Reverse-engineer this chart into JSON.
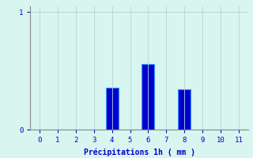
{
  "categories": [
    0,
    1,
    2,
    3,
    4,
    5,
    6,
    7,
    8,
    9,
    10,
    11
  ],
  "values": [
    0,
    0,
    0,
    0,
    0.36,
    0,
    0.56,
    0,
    0.34,
    0,
    0,
    0
  ],
  "bar_color": "#0000cc",
  "bar_edge_color": "#3399ff",
  "background_color": "#d8f5f0",
  "grid_color": "#b0d8d8",
  "axis_color": "#888888",
  "text_color": "#0000cc",
  "xlabel": "Précipitations 1h ( mm )",
  "xlim": [
    -0.5,
    11.5
  ],
  "ylim": [
    0,
    1.05
  ],
  "yticks": [
    0,
    1
  ],
  "xticks": [
    0,
    1,
    2,
    3,
    4,
    5,
    6,
    7,
    8,
    9,
    10,
    11
  ],
  "bar_width": 0.7,
  "label_fontsize": 7,
  "tick_fontsize": 6.5
}
